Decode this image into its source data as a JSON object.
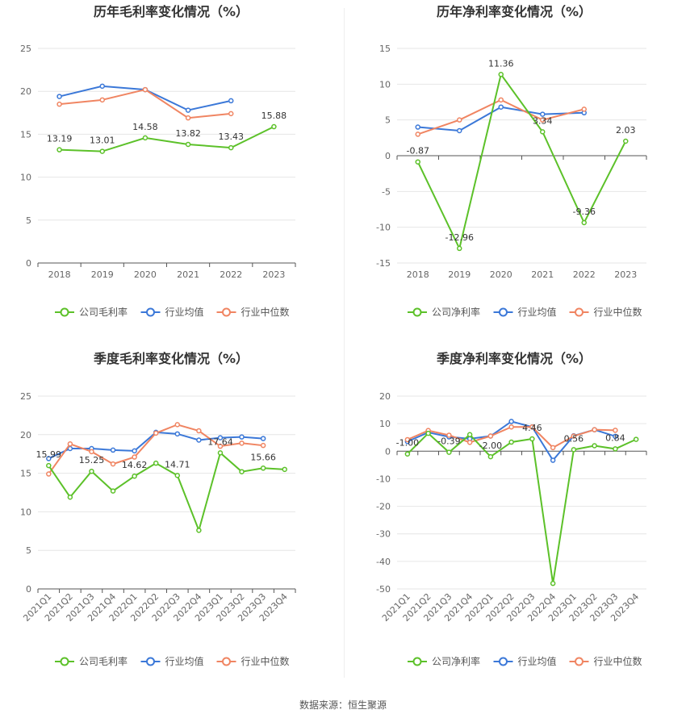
{
  "source_text": "数据来源：恒生聚源",
  "colors": {
    "company": "#5cc129",
    "avg": "#3b78d8",
    "median": "#f08562"
  },
  "chart_data": [
    {
      "type": "line",
      "title": "历年毛利率变化情况（%）",
      "categories": [
        "2018",
        "2019",
        "2020",
        "2021",
        "2022",
        "2023"
      ],
      "ylim": [
        0,
        25
      ],
      "yticks": [
        0,
        5,
        10,
        15,
        20,
        25
      ],
      "series": [
        {
          "name": "公司毛利率",
          "role": "company",
          "values": [
            13.19,
            13.01,
            14.58,
            13.82,
            13.43,
            15.88
          ],
          "labels": [
            "13.19",
            "13.01",
            "14.58",
            "13.82",
            "13.43",
            "15.88"
          ]
        },
        {
          "name": "行业均值",
          "role": "avg",
          "values": [
            19.4,
            20.6,
            20.2,
            17.8,
            18.9,
            null
          ]
        },
        {
          "name": "行业中位数",
          "role": "median",
          "values": [
            18.5,
            19.0,
            20.2,
            16.9,
            17.4,
            null
          ]
        }
      ]
    },
    {
      "type": "line",
      "title": "历年净利率变化情况（%）",
      "categories": [
        "2018",
        "2019",
        "2020",
        "2021",
        "2022",
        "2023"
      ],
      "ylim": [
        -15,
        15
      ],
      "yticks": [
        -15,
        -10,
        -5,
        0,
        5,
        10,
        15
      ],
      "series": [
        {
          "name": "公司净利率",
          "role": "company",
          "values": [
            -0.87,
            -12.96,
            11.36,
            3.34,
            -9.36,
            2.03
          ],
          "labels": [
            "-0.87",
            "-12.96",
            "11.36",
            "3.34",
            "-9.36",
            "2.03"
          ]
        },
        {
          "name": "行业均值",
          "role": "avg",
          "values": [
            4.0,
            3.5,
            6.8,
            5.8,
            6.0,
            null
          ]
        },
        {
          "name": "行业中位数",
          "role": "median",
          "values": [
            3.0,
            5.0,
            7.8,
            5.0,
            6.5,
            null
          ]
        }
      ]
    },
    {
      "type": "line",
      "title": "季度毛利率变化情况（%）",
      "categories": [
        "2021Q1",
        "2021Q2",
        "2021Q3",
        "2021Q4",
        "2022Q1",
        "2022Q2",
        "2022Q3",
        "2022Q4",
        "2023Q1",
        "2023Q2",
        "2023Q3",
        "2023Q4"
      ],
      "ylim": [
        0,
        25
      ],
      "yticks": [
        0,
        5,
        10,
        15,
        20,
        25
      ],
      "series": [
        {
          "name": "公司毛利率",
          "role": "company",
          "values": [
            15.99,
            11.9,
            15.25,
            12.7,
            14.62,
            16.3,
            14.71,
            7.6,
            17.64,
            15.2,
            15.66,
            15.5
          ],
          "labels": [
            "15.99",
            null,
            "15.25",
            null,
            "14.62",
            null,
            "14.71",
            null,
            "17.64",
            null,
            "15.66",
            null
          ]
        },
        {
          "name": "行业均值",
          "role": "avg",
          "values": [
            16.9,
            18.2,
            18.2,
            18.0,
            17.9,
            20.3,
            20.1,
            19.3,
            19.6,
            19.7,
            19.5,
            null
          ]
        },
        {
          "name": "行业中位数",
          "role": "median",
          "values": [
            14.9,
            18.8,
            17.8,
            16.2,
            17.1,
            20.2,
            21.3,
            20.5,
            18.5,
            18.9,
            18.6,
            null
          ]
        }
      ]
    },
    {
      "type": "line",
      "title": "季度净利率变化情况（%）",
      "categories": [
        "2021Q1",
        "2021Q2",
        "2021Q3",
        "2021Q4",
        "2022Q1",
        "2022Q2",
        "2022Q3",
        "2022Q4",
        "2023Q1",
        "2023Q2",
        "2023Q3",
        "2023Q4"
      ],
      "ylim": [
        -50,
        20
      ],
      "yticks": [
        -50,
        -40,
        -30,
        -20,
        -10,
        0,
        10,
        20
      ],
      "series": [
        {
          "name": "公司净利率",
          "role": "company",
          "values": [
            -1.0,
            6.5,
            -0.39,
            6.0,
            -2.0,
            3.3,
            4.46,
            -48.0,
            0.56,
            2.0,
            0.84,
            4.3
          ],
          "labels": [
            "-1.00",
            null,
            "-0.39",
            null,
            "-2.00",
            null,
            "4.46",
            null,
            "0.56",
            null,
            "0.84",
            null
          ]
        },
        {
          "name": "行业均值",
          "role": "avg",
          "values": [
            3.5,
            6.8,
            5.2,
            4.5,
            5.5,
            10.8,
            8.8,
            -3.3,
            5.6,
            7.8,
            5.4,
            null
          ]
        },
        {
          "name": "行业中位数",
          "role": "median",
          "values": [
            4.2,
            7.5,
            5.8,
            3.2,
            5.5,
            8.8,
            8.8,
            1.3,
            5.5,
            7.8,
            7.6,
            null
          ]
        }
      ]
    }
  ]
}
